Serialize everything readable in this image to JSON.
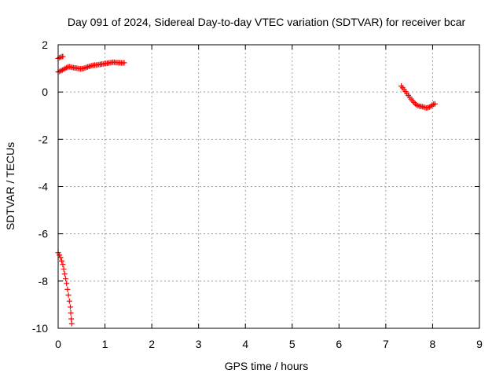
{
  "chart_data": {
    "type": "scatter",
    "title": "Day 091 of 2024, Sidereal Day-to-day VTEC variation (SDTVAR) for receiver bcar",
    "xlabel": "GPS time / hours",
    "ylabel": "SDTVAR / TECUs",
    "xlim": [
      0,
      9
    ],
    "ylim": [
      -10,
      2
    ],
    "x_ticks": [
      "0",
      "1",
      "2",
      "3",
      "4",
      "5",
      "6",
      "7",
      "8",
      "9"
    ],
    "y_ticks": [
      "2",
      "0",
      "-2",
      "-4",
      "-6",
      "-8",
      "-10"
    ],
    "grid": true,
    "marker": "plus",
    "color": "#ff0000",
    "series": [
      {
        "values": [
          [
            0.0,
            1.42
          ],
          [
            0.03,
            1.45
          ],
          [
            0.06,
            1.48
          ],
          [
            0.09,
            1.5
          ],
          [
            0.1,
            1.5
          ],
          [
            0.0,
            0.85
          ],
          [
            0.03,
            0.87
          ],
          [
            0.06,
            0.9
          ],
          [
            0.09,
            0.93
          ],
          [
            0.12,
            0.96
          ],
          [
            0.15,
            1.0
          ],
          [
            0.18,
            1.03
          ],
          [
            0.21,
            1.06
          ],
          [
            0.24,
            1.07
          ],
          [
            0.27,
            1.06
          ],
          [
            0.3,
            1.04
          ],
          [
            0.33,
            1.03
          ],
          [
            0.36,
            1.02
          ],
          [
            0.39,
            1.01
          ],
          [
            0.42,
            1.0
          ],
          [
            0.45,
            0.99
          ],
          [
            0.48,
            0.98
          ],
          [
            0.51,
            0.99
          ],
          [
            0.54,
            1.0
          ],
          [
            0.57,
            1.02
          ],
          [
            0.6,
            1.04
          ],
          [
            0.63,
            1.06
          ],
          [
            0.66,
            1.08
          ],
          [
            0.69,
            1.1
          ],
          [
            0.72,
            1.12
          ],
          [
            0.75,
            1.13
          ],
          [
            0.78,
            1.14
          ],
          [
            0.81,
            1.14
          ],
          [
            0.84,
            1.15
          ],
          [
            0.87,
            1.16
          ],
          [
            0.9,
            1.17
          ],
          [
            0.93,
            1.18
          ],
          [
            0.96,
            1.19
          ],
          [
            0.99,
            1.2
          ],
          [
            1.02,
            1.21
          ],
          [
            1.05,
            1.22
          ],
          [
            1.08,
            1.23
          ],
          [
            1.11,
            1.24
          ],
          [
            1.14,
            1.25
          ],
          [
            1.17,
            1.26
          ],
          [
            1.2,
            1.26
          ],
          [
            1.23,
            1.25
          ],
          [
            1.26,
            1.25
          ],
          [
            1.29,
            1.24
          ],
          [
            1.32,
            1.24
          ],
          [
            1.35,
            1.23
          ],
          [
            1.38,
            1.23
          ],
          [
            1.41,
            1.24
          ],
          [
            0.0,
            -6.8
          ],
          [
            0.025,
            -6.9
          ],
          [
            0.05,
            -7.0
          ],
          [
            0.075,
            -7.15
          ],
          [
            0.1,
            -7.3
          ],
          [
            0.12,
            -7.5
          ],
          [
            0.14,
            -7.7
          ],
          [
            0.16,
            -7.9
          ],
          [
            0.18,
            -8.1
          ],
          [
            0.2,
            -8.35
          ],
          [
            0.22,
            -8.6
          ],
          [
            0.24,
            -8.85
          ],
          [
            0.26,
            -9.1
          ],
          [
            0.27,
            -9.35
          ],
          [
            0.28,
            -9.6
          ],
          [
            0.29,
            -9.8
          ],
          [
            7.33,
            0.25
          ],
          [
            7.36,
            0.18
          ],
          [
            7.39,
            0.1
          ],
          [
            7.42,
            0.02
          ],
          [
            7.45,
            -0.06
          ],
          [
            7.48,
            -0.14
          ],
          [
            7.51,
            -0.22
          ],
          [
            7.54,
            -0.3
          ],
          [
            7.57,
            -0.37
          ],
          [
            7.6,
            -0.44
          ],
          [
            7.63,
            -0.5
          ],
          [
            7.66,
            -0.55
          ],
          [
            7.69,
            -0.58
          ],
          [
            7.72,
            -0.6
          ],
          [
            7.75,
            -0.61
          ],
          [
            7.78,
            -0.62
          ],
          [
            7.81,
            -0.64
          ],
          [
            7.84,
            -0.66
          ],
          [
            7.87,
            -0.67
          ],
          [
            7.9,
            -0.66
          ],
          [
            7.93,
            -0.64
          ],
          [
            7.96,
            -0.6
          ],
          [
            7.99,
            -0.55
          ],
          [
            8.02,
            -0.52
          ],
          [
            8.05,
            -0.5
          ]
        ]
      }
    ]
  }
}
